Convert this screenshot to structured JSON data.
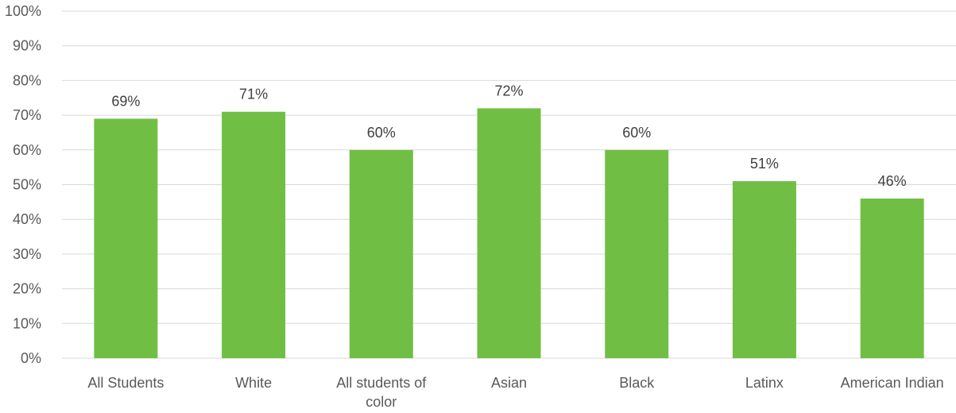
{
  "chart_data": {
    "type": "bar",
    "categories": [
      "All Students",
      "White",
      "All students of color",
      "Asian",
      "Black",
      "Latinx",
      "American Indian"
    ],
    "values": [
      69,
      71,
      60,
      72,
      60,
      51,
      46
    ],
    "data_labels": [
      "69%",
      "71%",
      "60%",
      "72%",
      "60%",
      "51%",
      "46%"
    ],
    "title": "",
    "xlabel": "",
    "ylabel": "",
    "ylim": [
      0,
      100
    ],
    "yticks": [
      0,
      10,
      20,
      30,
      40,
      50,
      60,
      70,
      80,
      90,
      100
    ],
    "ytick_labels": [
      "0%",
      "10%",
      "20%",
      "30%",
      "40%",
      "50%",
      "60%",
      "70%",
      "80%",
      "90%",
      "100%"
    ],
    "grid": true,
    "legend": "none",
    "bar_color": "#70bf44"
  }
}
